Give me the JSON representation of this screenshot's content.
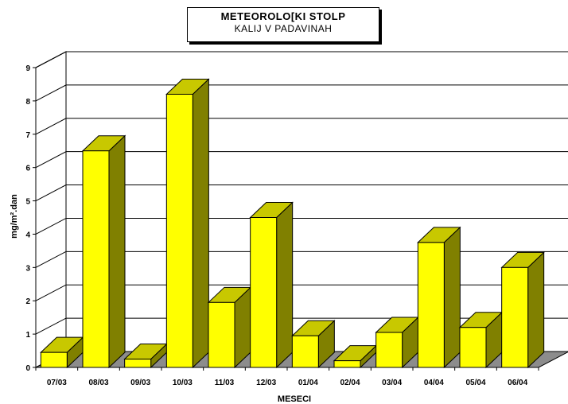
{
  "chart_data": {
    "type": "bar",
    "title": "METEOROLO[KI STOLP",
    "subtitle": "KALIJ V PADAVINAH",
    "xlabel": "MESECI",
    "ylabel": "mg/m².dan",
    "categories": [
      "07/03",
      "08/03",
      "09/03",
      "10/03",
      "11/03",
      "12/03",
      "01/04",
      "02/04",
      "03/04",
      "04/04",
      "05/04",
      "06/04"
    ],
    "values": [
      0.45,
      6.5,
      0.25,
      8.2,
      1.95,
      4.5,
      0.95,
      0.2,
      1.05,
      3.75,
      1.2,
      3.0
    ],
    "ylim": [
      0,
      9
    ],
    "yticks": [
      "0",
      "1",
      "2",
      "3",
      "4",
      "5",
      "6",
      "7",
      "8",
      "9"
    ],
    "grid": true,
    "bar_color": "#ffff00"
  }
}
